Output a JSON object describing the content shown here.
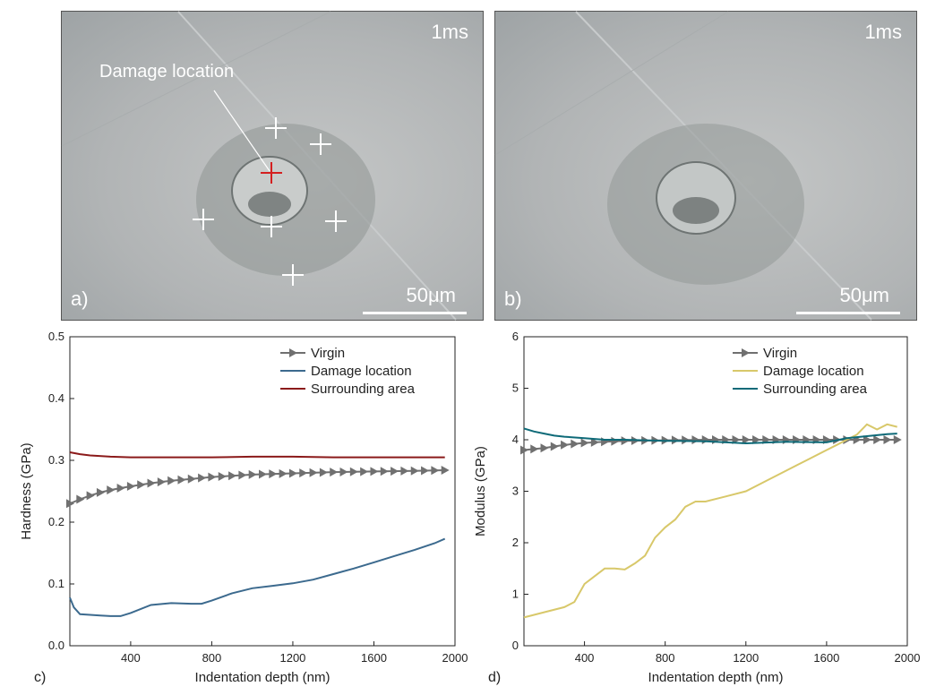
{
  "photos": [
    {
      "panel": "a)",
      "time": "1ms",
      "scale": "50μm",
      "annotation": "Damage location"
    },
    {
      "panel": "b)",
      "time": "1ms",
      "scale": "50μm"
    }
  ],
  "chart_data": [
    {
      "type": "line",
      "panel": "c)",
      "xlabel": "Indentation depth (nm)",
      "ylabel": "Hardness (GPa)",
      "xlim": [
        100,
        2000
      ],
      "ylim": [
        0.0,
        0.5
      ],
      "xticks": [
        "400",
        "800",
        "1200",
        "1600",
        "2000"
      ],
      "yticks": [
        "0.0",
        "0.1",
        "0.2",
        "0.3",
        "0.4",
        "0.5"
      ],
      "legend_position": "top-right",
      "series": [
        {
          "name": "Virgin",
          "color": "#707070",
          "marker": "triangle-right",
          "x": [
            100,
            150,
            200,
            250,
            300,
            400,
            500,
            600,
            700,
            800,
            900,
            1000,
            1200,
            1400,
            1600,
            1800,
            1950
          ],
          "y": [
            0.23,
            0.237,
            0.243,
            0.248,
            0.252,
            0.258,
            0.263,
            0.267,
            0.27,
            0.273,
            0.275,
            0.277,
            0.279,
            0.281,
            0.282,
            0.283,
            0.284
          ]
        },
        {
          "name": "Damage location",
          "color": "#3c6a8e",
          "x": [
            100,
            120,
            150,
            200,
            250,
            300,
            350,
            400,
            500,
            600,
            700,
            750,
            800,
            900,
            1000,
            1100,
            1200,
            1300,
            1400,
            1500,
            1600,
            1700,
            1800,
            1900,
            1950
          ],
          "y": [
            0.078,
            0.062,
            0.051,
            0.05,
            0.049,
            0.048,
            0.048,
            0.053,
            0.066,
            0.069,
            0.068,
            0.068,
            0.073,
            0.085,
            0.093,
            0.097,
            0.101,
            0.107,
            0.116,
            0.125,
            0.135,
            0.145,
            0.155,
            0.166,
            0.173
          ]
        },
        {
          "name": "Surrounding area",
          "color": "#8b1a1a",
          "x": [
            100,
            150,
            200,
            300,
            400,
            600,
            800,
            1000,
            1200,
            1400,
            1600,
            1800,
            1950
          ],
          "y": [
            0.313,
            0.31,
            0.308,
            0.306,
            0.305,
            0.305,
            0.305,
            0.306,
            0.306,
            0.305,
            0.305,
            0.305,
            0.305
          ]
        }
      ]
    },
    {
      "type": "line",
      "panel": "d)",
      "xlabel": "Indentation depth (nm)",
      "ylabel": "Modulus (GPa)",
      "xlim": [
        100,
        2000
      ],
      "ylim": [
        0,
        6
      ],
      "xticks": [
        "400",
        "800",
        "1200",
        "1600",
        "2000"
      ],
      "yticks": [
        "0",
        "1",
        "2",
        "3",
        "4",
        "5",
        "6"
      ],
      "legend_position": "top-right",
      "series": [
        {
          "name": "Virgin",
          "color": "#707070",
          "marker": "triangle-right",
          "x": [
            100,
            200,
            300,
            400,
            500,
            600,
            800,
            1000,
            1200,
            1400,
            1600,
            1800,
            1950
          ],
          "y": [
            3.8,
            3.84,
            3.9,
            3.94,
            3.96,
            3.98,
            3.99,
            4.0,
            4.0,
            4.0,
            4.0,
            4.0,
            4.0
          ]
        },
        {
          "name": "Damage location",
          "color": "#d8c86a",
          "x": [
            100,
            150,
            200,
            300,
            350,
            400,
            450,
            500,
            550,
            600,
            650,
            700,
            750,
            800,
            850,
            900,
            950,
            1000,
            1100,
            1200,
            1300,
            1400,
            1500,
            1600,
            1650,
            1700,
            1750,
            1800,
            1850,
            1900,
            1950
          ],
          "y": [
            0.55,
            0.6,
            0.65,
            0.75,
            0.85,
            1.2,
            1.35,
            1.5,
            1.5,
            1.48,
            1.6,
            1.75,
            2.1,
            2.3,
            2.45,
            2.7,
            2.8,
            2.8,
            2.9,
            3.0,
            3.2,
            3.4,
            3.6,
            3.8,
            3.9,
            4.0,
            4.1,
            4.3,
            4.2,
            4.3,
            4.25
          ]
        },
        {
          "name": "Surrounding area",
          "color": "#0e6a78",
          "x": [
            100,
            150,
            200,
            250,
            300,
            400,
            500,
            600,
            800,
            1000,
            1200,
            1400,
            1600,
            1700,
            1800,
            1900,
            1950
          ],
          "y": [
            4.22,
            4.16,
            4.12,
            4.08,
            4.06,
            4.03,
            4.0,
            4.0,
            3.98,
            3.97,
            3.93,
            3.96,
            3.95,
            4.03,
            4.07,
            4.11,
            4.12
          ]
        }
      ]
    }
  ]
}
